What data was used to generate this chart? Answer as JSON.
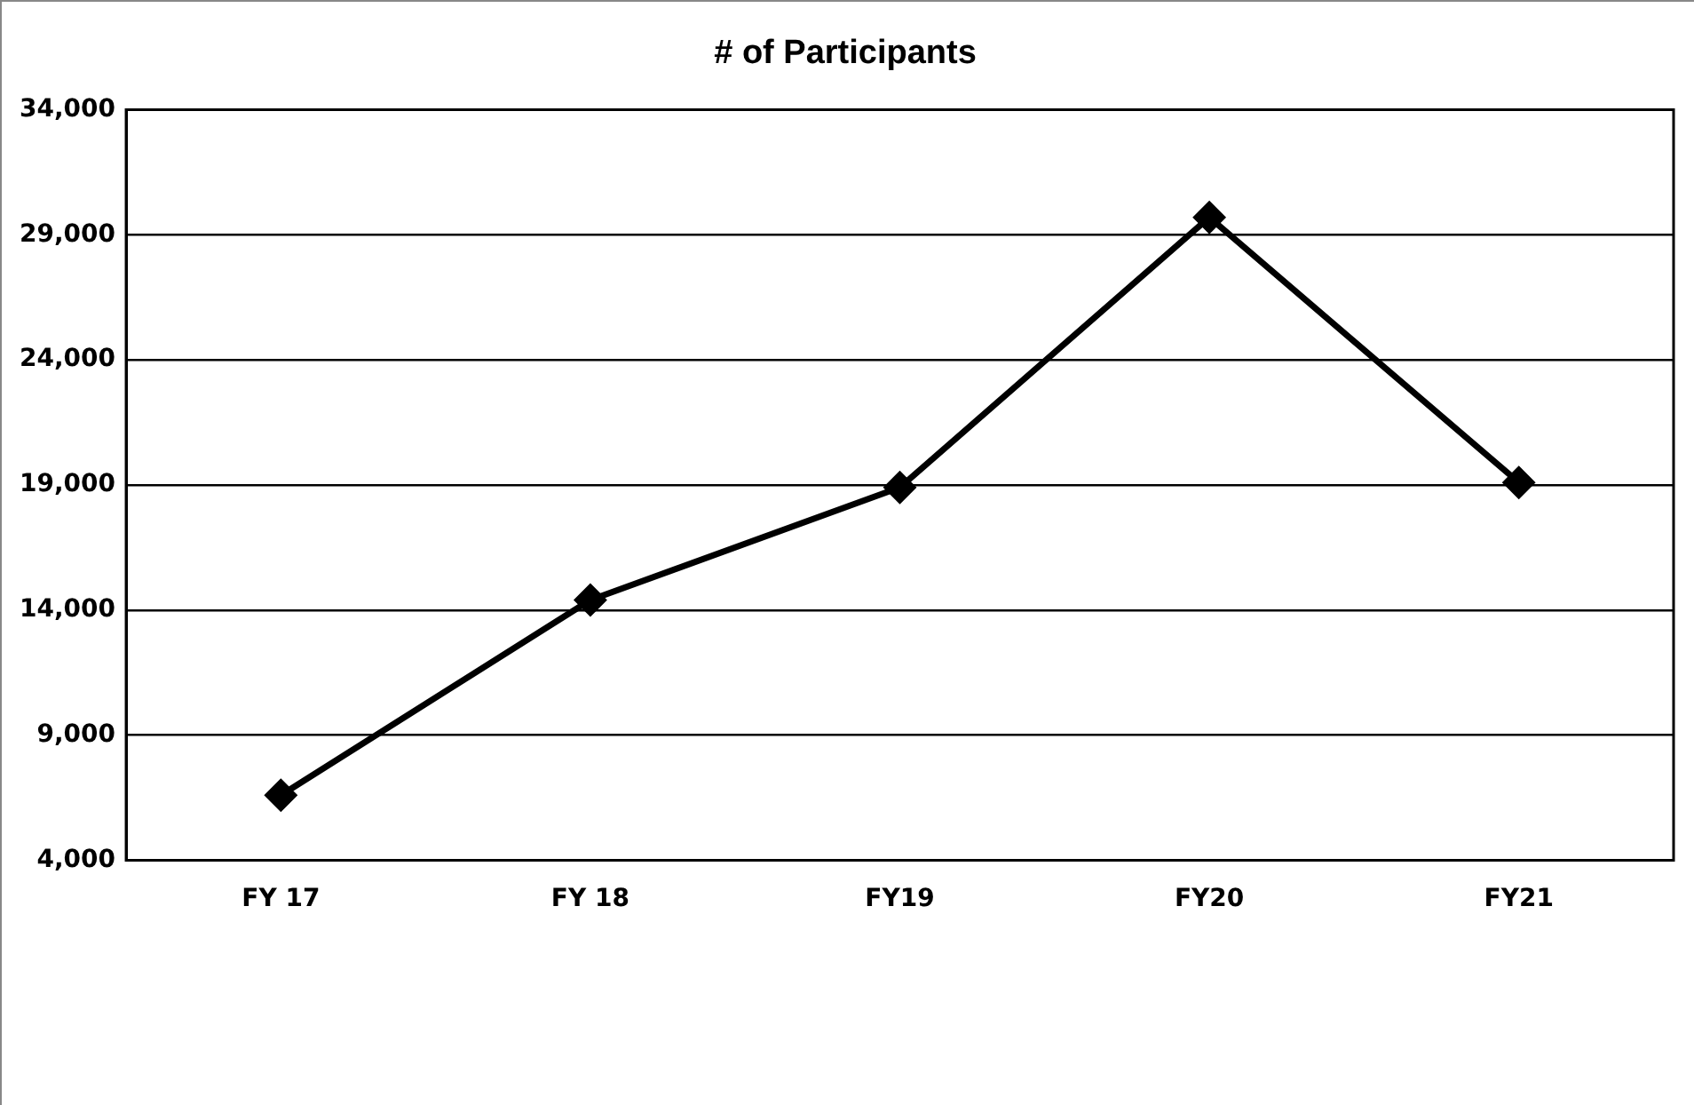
{
  "chart_data": {
    "type": "line",
    "title": "# of Participants",
    "categories": [
      "FY 17",
      "FY 18",
      "FY19",
      "FY20",
      "FY21"
    ],
    "series": [
      {
        "color": "#000000",
        "values": [
          6600,
          14400,
          18900,
          29700,
          19100
        ]
      }
    ],
    "ylim": [
      4000,
      34000
    ],
    "yticks": [
      {
        "value": 4000,
        "label": "4,000"
      },
      {
        "value": 9000,
        "label": "9,000"
      },
      {
        "value": 14000,
        "label": "14,000"
      },
      {
        "value": 19000,
        "label": "19,000"
      },
      {
        "value": 24000,
        "label": "24,000"
      },
      {
        "value": 29000,
        "label": "29,000"
      },
      {
        "value": 34000,
        "label": "34,000"
      }
    ],
    "grid": "y",
    "legend": false,
    "marker": "diamond",
    "line_style": "solid"
  }
}
